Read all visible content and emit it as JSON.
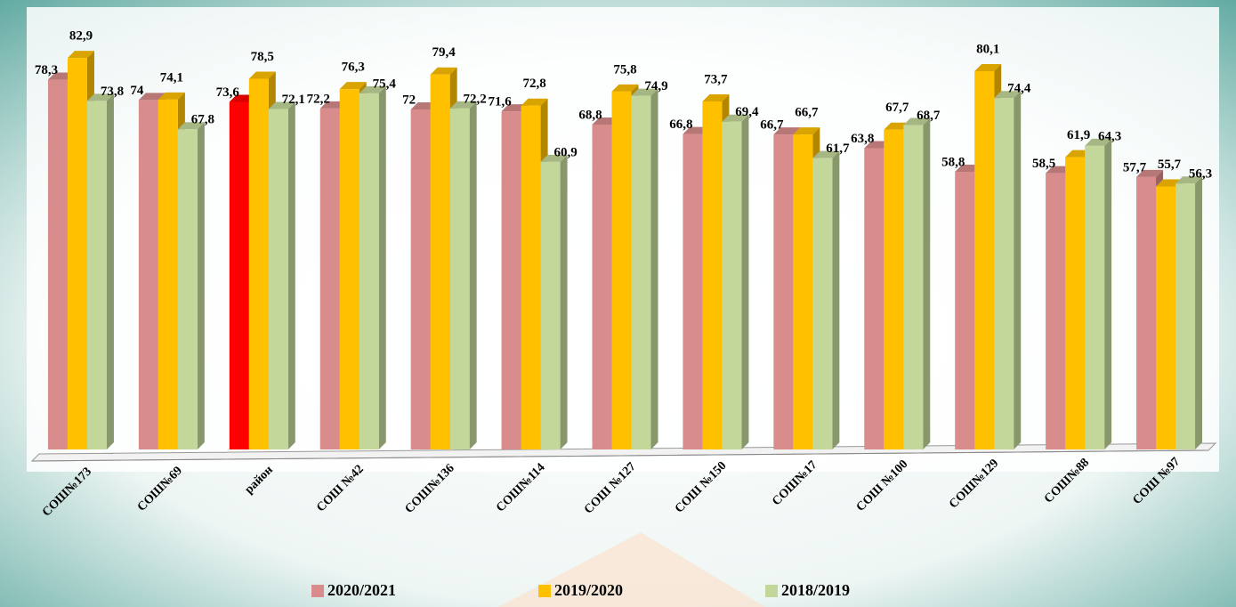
{
  "chart_data": {
    "type": "bar3d",
    "categories": [
      "СОШ№173",
      "СОШ№69",
      "район",
      "СОШ №42",
      "СОШ№136",
      "СОШ№114",
      "СОШ №127",
      "СОШ №150",
      "СОШ№17",
      "СОШ №100",
      "СОШ№129",
      "СОШ№88",
      "СОШ №97"
    ],
    "series": [
      {
        "name": "2020/2021",
        "color": "#d98c8c",
        "colors": [
          "#d98c8c",
          "#d98c8c",
          "#ff0000",
          "#d98c8c",
          "#d98c8c",
          "#d98c8c",
          "#d98c8c",
          "#d98c8c",
          "#d98c8c",
          "#d98c8c",
          "#d98c8c",
          "#d98c8c",
          "#d98c8c"
        ],
        "values": [
          78.3,
          74,
          73.6,
          72.2,
          72,
          71.6,
          68.8,
          66.8,
          66.7,
          63.8,
          58.8,
          58.5,
          57.7
        ],
        "value_labels": [
          "78,3",
          "74",
          "73,6",
          "72,2",
          "72",
          "71,6",
          "68,8",
          "66,8",
          "66,7",
          "63,8",
          "58,8",
          "58,5",
          "57,7"
        ]
      },
      {
        "name": "2019/2020",
        "color": "#ffc000",
        "values": [
          82.9,
          74.1,
          78.5,
          76.3,
          79.4,
          72.8,
          75.8,
          73.7,
          66.7,
          67.7,
          80.1,
          61.9,
          55.7
        ],
        "value_labels": [
          "82,9",
          "74,1",
          "78,5",
          "76,3",
          "79,4",
          "72,8",
          "75,8",
          "73,7",
          "66,7",
          "67,7",
          "80,1",
          "61,9",
          "55,7"
        ]
      },
      {
        "name": "2018/2019",
        "color": "#c4d79b",
        "values": [
          73.8,
          67.8,
          72.1,
          75.4,
          72.2,
          60.9,
          74.9,
          69.4,
          61.7,
          68.7,
          74.4,
          64.3,
          56.3
        ],
        "value_labels": [
          "73,8",
          "67,8",
          "72,1",
          "75,4",
          "72,2",
          "60,9",
          "74,9",
          "69,4",
          "61,7",
          "68,7",
          "74,4",
          "64,3",
          "56,3"
        ]
      }
    ],
    "ylim": [
      0,
      85
    ]
  }
}
